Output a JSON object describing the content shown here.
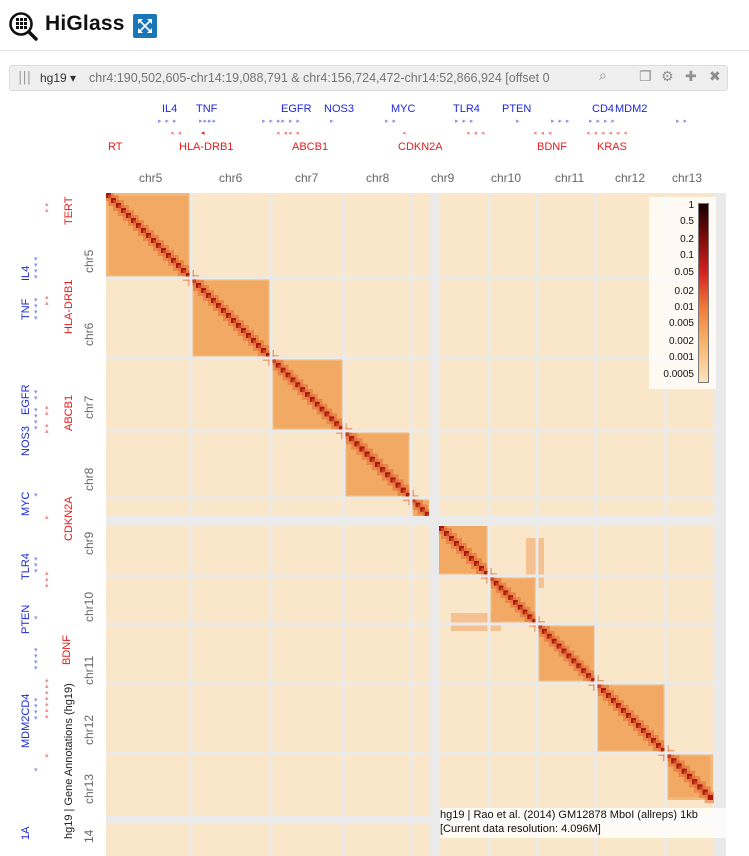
{
  "app": {
    "title": "HiGlass",
    "logo_icon": "magnifier-logo-icon",
    "expand_icon": "fullscreen-expand-icon",
    "accent_color": "#1b76b8"
  },
  "toolbar": {
    "drag_icon": "drag-handle-icon",
    "assembly": "hg19 ▾",
    "locus_placeholder": "chr4:190,502,605-chr14:19,088,791 & chr4:156,724,472-chr14:52,866,924 [offset 0",
    "icons": [
      "search-icon",
      "copy-icon",
      "gear-icon",
      "plus-icon",
      "close-icon"
    ]
  },
  "top_genes": {
    "blue": [
      "IL4",
      "TNF",
      "EGFR",
      "NOS3",
      "MYC",
      "TLR4",
      "PTEN",
      "CD4",
      "MDM2"
    ],
    "red": [
      "RT",
      "HLA-DRB1",
      "ABCB1",
      "CDKN2A",
      "BDNF",
      "KRAS"
    ]
  },
  "chromosomes_top": [
    "chr5",
    "chr6",
    "chr7",
    "chr8",
    "chr9",
    "chr10",
    "chr11",
    "chr12",
    "chr13"
  ],
  "chromosomes_left": [
    "chr5",
    "chr6",
    "chr7",
    "chr8",
    "chr9",
    "chr10",
    "chr11",
    "chr12",
    "chr13",
    "14"
  ],
  "left_genes": {
    "blue": [
      "IL4",
      "TNF",
      "EGFR",
      "NOS3",
      "MYC",
      "TLR4",
      "PTEN",
      "MDM2CD4",
      "1A"
    ],
    "red": [
      "TERT",
      "HLA-DRB1",
      "ABCB1",
      "CDKN2A",
      "BDNF"
    ]
  },
  "colorbar": {
    "ticks": [
      "1",
      "0.5",
      "0.2",
      "0.1",
      "0.05",
      "0.02",
      "0.01",
      "0.005",
      "0.002",
      "0.001",
      "0.0005"
    ]
  },
  "heatmap": {
    "dataset": "hg19 | Rao et al. (2014) GM12878 MboI (allreps) 1kb",
    "resolution": "[Current data resolution: 4.096M]",
    "track_label": "hg19 | Gene Annotations (hg19)"
  }
}
